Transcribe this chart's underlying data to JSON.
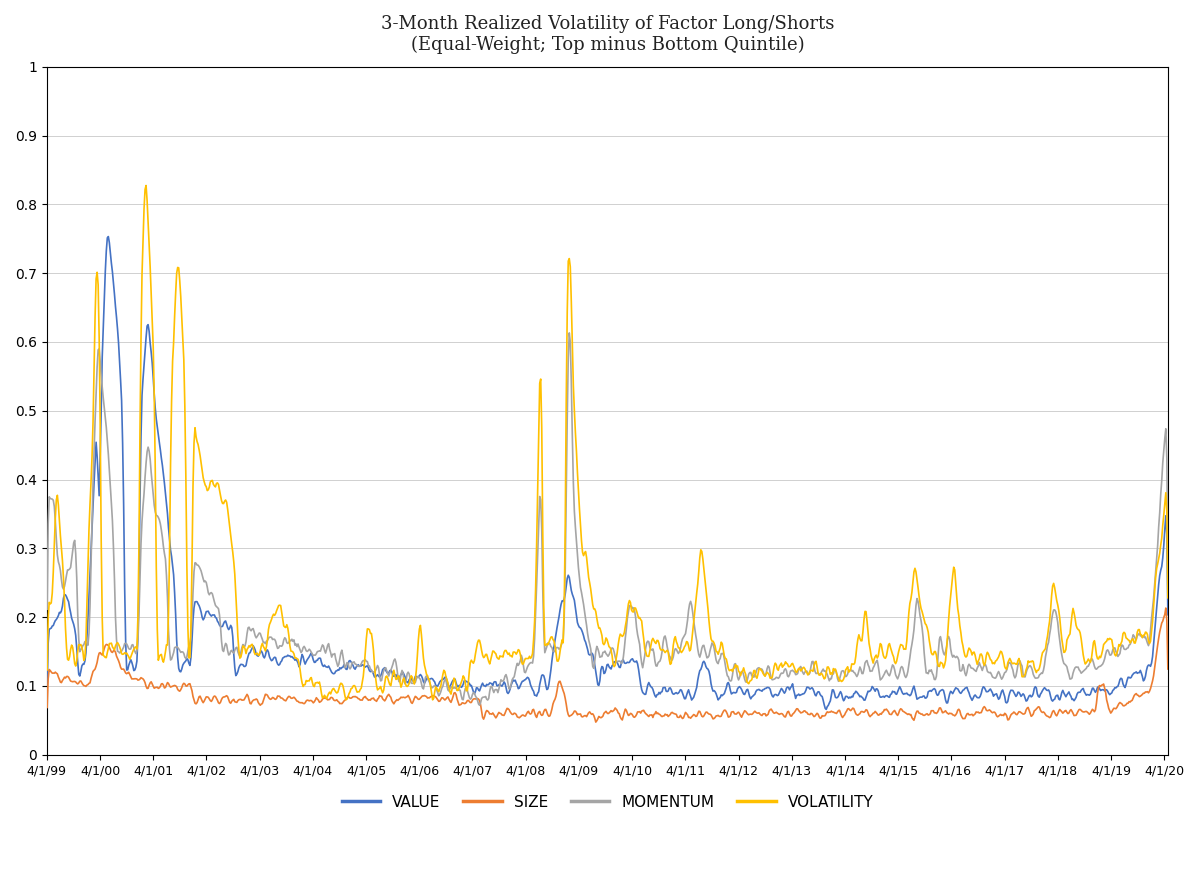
{
  "title_line1": "3-Month Realized Volatility of Factor Long/Shorts",
  "title_line2": "(Equal-Weight; Top minus Bottom Quintile)",
  "colors": {
    "VALUE": "#4472C4",
    "SIZE": "#ED7D31",
    "MOMENTUM": "#A5A5A5",
    "VOLATILITY": "#FFC000"
  },
  "line_widths": {
    "VALUE": 1.2,
    "SIZE": 1.2,
    "MOMENTUM": 1.2,
    "VOLATILITY": 1.2
  },
  "ylim": [
    0,
    1
  ],
  "yticks": [
    0,
    0.1,
    0.2,
    0.3,
    0.4,
    0.5,
    0.6,
    0.7,
    0.8,
    0.9,
    1
  ],
  "ytick_labels": [
    "0",
    "0.1",
    "0.2",
    "0.3",
    "0.4",
    "0.5",
    "0.6",
    "0.7",
    "0.8",
    "0.9",
    "1"
  ],
  "xtick_labels": [
    "4/1/99",
    "4/1/00",
    "4/1/01",
    "4/1/02",
    "4/1/03",
    "4/1/04",
    "4/1/05",
    "4/1/06",
    "4/1/07",
    "4/1/08",
    "4/1/09",
    "4/1/10",
    "4/1/11",
    "4/1/12",
    "4/1/13",
    "4/1/14",
    "4/1/15",
    "4/1/16",
    "4/1/17",
    "4/1/18",
    "4/1/19",
    "4/1/20"
  ],
  "legend_labels": [
    "VALUE",
    "SIZE",
    "MOMENTUM",
    "VOLATILITY"
  ],
  "background_color": "#FFFFFF",
  "grid_color": "#D0D0D0"
}
